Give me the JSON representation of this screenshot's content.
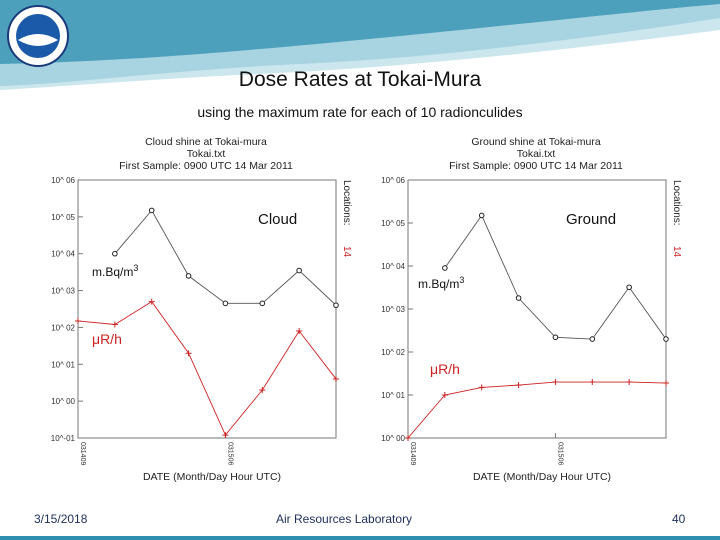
{
  "slide": {
    "title": "Dose Rates at Tokai-Mura",
    "subtitle": "using the maximum rate for each of 10 radionculides",
    "footer_date": "3/15/2018",
    "footer_org": "Air Resources Laboratory",
    "page_number": "40"
  },
  "colors": {
    "banner": "#2e8fb0",
    "red_series": "#cc2222",
    "black_series": "#222222"
  },
  "chart_data": [
    {
      "type": "line",
      "title": [
        "Cloud shine at Tokai-mura",
        "Tokai.txt",
        "First Sample: 0900 UTC 14 Mar 2011"
      ],
      "y_scale": "log",
      "ylim": [
        0.1,
        1000000
      ],
      "y_ticks": [
        {
          "v": 1000000,
          "label": "10^ 06"
        },
        {
          "v": 100000,
          "label": "10^ 05"
        },
        {
          "v": 10000,
          "label": "10^ 04"
        },
        {
          "v": 1000,
          "label": "10^ 03"
        },
        {
          "v": 100,
          "label": "10^ 02"
        },
        {
          "v": 10,
          "label": "10^ 01"
        },
        {
          "v": 1,
          "label": "10^ 00"
        },
        {
          "v": 0.1,
          "label": "10^-01"
        }
      ],
      "x_ticks": [
        "031409",
        "031506"
      ],
      "xlabel": "DATE (Month/Day Hour UTC)",
      "side_label": "Locations:",
      "side_value": "14",
      "annotations": {
        "panel": "Cloud",
        "black_unit": "m.Bq/m",
        "black_unit_sup": "3",
        "red_unit": "μR/h"
      },
      "series": [
        {
          "values": [
            null,
            10000,
            150000,
            2500,
            450,
            450,
            3500,
            400
          ]
        },
        {
          "values": [
            150,
            120,
            500,
            20,
            0.12,
            2,
            80,
            4
          ]
        }
      ]
    },
    {
      "type": "line",
      "title": [
        "Ground shine at Tokai-mura",
        "Tokai.txt",
        "First Sample: 0900 UTC 14 Mar 2011"
      ],
      "y_scale": "log",
      "ylim": [
        1,
        1000000
      ],
      "y_ticks": [
        {
          "v": 1000000,
          "label": "10^ 06"
        },
        {
          "v": 100000,
          "label": "10^ 05"
        },
        {
          "v": 10000,
          "label": "10^ 04"
        },
        {
          "v": 1000,
          "label": "10^ 03"
        },
        {
          "v": 100,
          "label": "10^ 02"
        },
        {
          "v": 10,
          "label": "10^ 01"
        },
        {
          "v": 1,
          "label": "10^ 00"
        }
      ],
      "x_ticks": [
        "031409",
        "031506"
      ],
      "xlabel": "DATE (Month/Day Hour UTC)",
      "side_label": "Locations:",
      "side_value": "14",
      "annotations": {
        "panel": "Ground",
        "black_unit": "m.Bq/m",
        "black_unit_sup": "3",
        "red_unit": "μR/h"
      },
      "series": [
        {
          "values": [
            null,
            9000,
            150000,
            1800,
            220,
            200,
            3200,
            200
          ]
        },
        {
          "values": [
            1,
            10,
            15,
            17,
            20,
            20,
            20,
            19
          ]
        }
      ]
    }
  ]
}
